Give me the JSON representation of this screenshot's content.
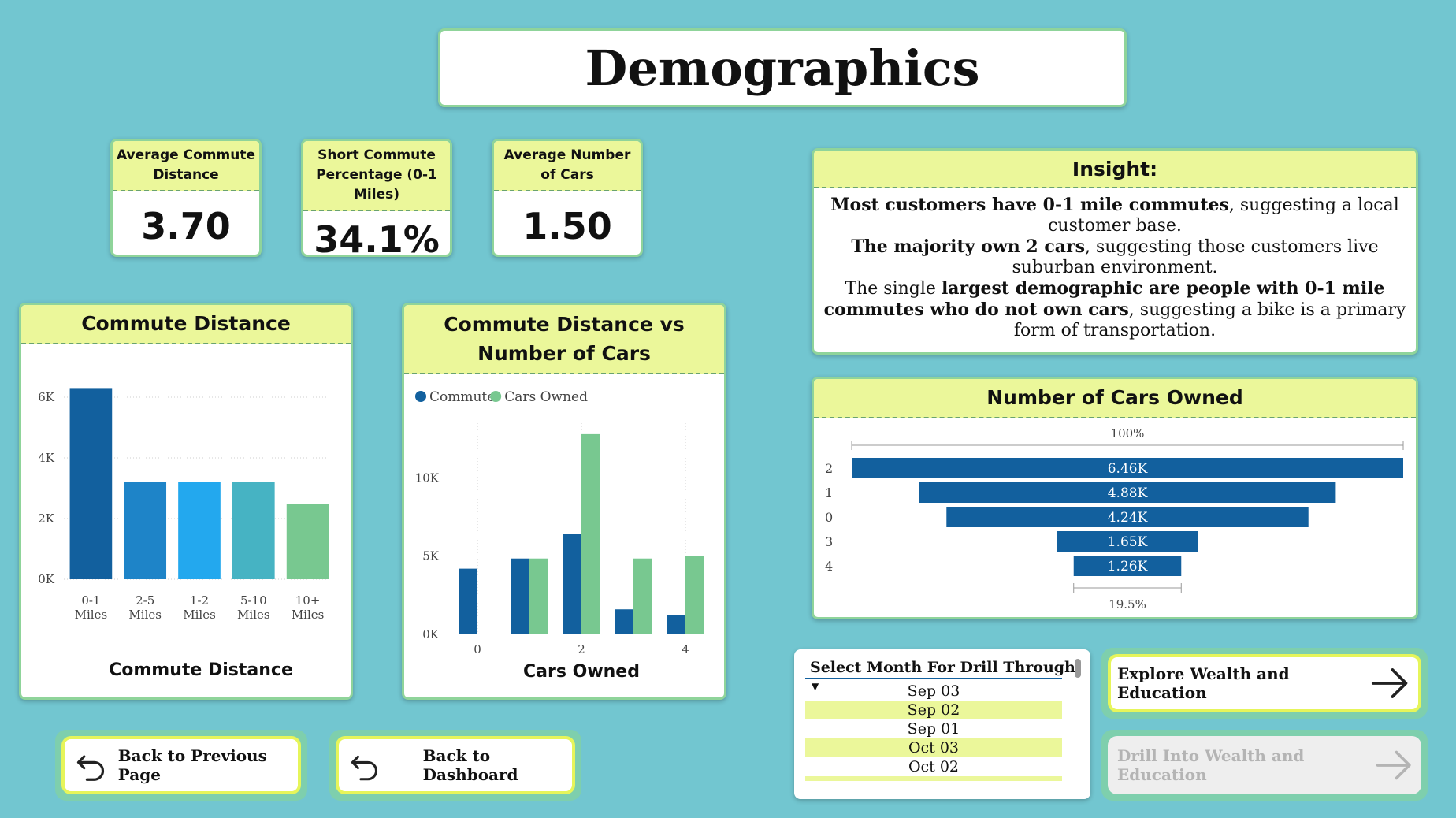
{
  "title": "Demographics",
  "kpis": [
    {
      "label": "Average Commute Distance",
      "value": "3.70"
    },
    {
      "label": "Short Commute Percentage (0-1 Miles)",
      "value": "34.1%"
    },
    {
      "label": "Average Number of Cars",
      "value": "1.50"
    }
  ],
  "insight": {
    "title": "Insight:",
    "lines": [
      {
        "bold": "Most customers have 0-1 mile commutes",
        "rest": ", suggesting a local customer base."
      },
      {
        "bold": "The majority own 2 cars",
        "rest": ", suggesting those customers live suburban environment."
      },
      {
        "pre": "The single ",
        "bold": "largest demographic are people with 0-1 mile commutes who do not own cars",
        "rest": ", suggesting a bike is a primary form of transportation."
      }
    ]
  },
  "chart_data": [
    {
      "type": "bar",
      "title": "Commute Distance",
      "xlabel": "Commute Distance",
      "ylabel": "",
      "categories": [
        "0-1 Miles",
        "2-5 Miles",
        "1-2 Miles",
        "5-10 Miles",
        "10+ Miles"
      ],
      "values": [
        6300,
        3220,
        3220,
        3200,
        2470
      ],
      "colors": [
        "#12609e",
        "#1e84c8",
        "#23a8ee",
        "#46b3c3",
        "#78c890"
      ],
      "yticks": [
        "0K",
        "2K",
        "4K",
        "6K"
      ],
      "ylim": [
        0,
        6700
      ]
    },
    {
      "type": "bar",
      "title": "Commute Distance vs Number of Cars",
      "xlabel": "Cars Owned",
      "ylabel": "",
      "legend": "top-left",
      "x": [
        0,
        1,
        2,
        3,
        4
      ],
      "xticks": [
        "0",
        "2",
        "4"
      ],
      "yticks": [
        "0K",
        "5K",
        "10K"
      ],
      "ylim": [
        0,
        13500
      ],
      "series": [
        {
          "name": "Commute",
          "color": "#12609e",
          "values": [
            4200,
            4850,
            6400,
            1600,
            1250
          ]
        },
        {
          "name": "Cars Owned",
          "color": "#78c890",
          "values": [
            0,
            4850,
            12800,
            4850,
            5000
          ]
        }
      ]
    },
    {
      "type": "bar",
      "title": "Number of Cars Owned",
      "xlabel": "",
      "ylabel": "",
      "categories": [
        "2",
        "1",
        "0",
        "3",
        "4"
      ],
      "values": [
        6460,
        4880,
        4240,
        1650,
        1260
      ],
      "labels": [
        "6.46K",
        "4.88K",
        "4.24K",
        "1.65K",
        "1.26K"
      ],
      "top_label": "100%",
      "bottom_label": "19.5%",
      "color": "#12609e"
    }
  ],
  "slicer": {
    "title": "Select Month For Drill Through",
    "items": [
      "Sep 03",
      "Sep 02",
      "Sep 01",
      "Oct 03",
      "Oct 02"
    ]
  },
  "buttons": {
    "back_previous": "Back to Previous Page",
    "back_dashboard": "Back to Dashboard",
    "explore": "Explore Wealth and Education",
    "drill": "Drill Into Wealth and Education"
  }
}
